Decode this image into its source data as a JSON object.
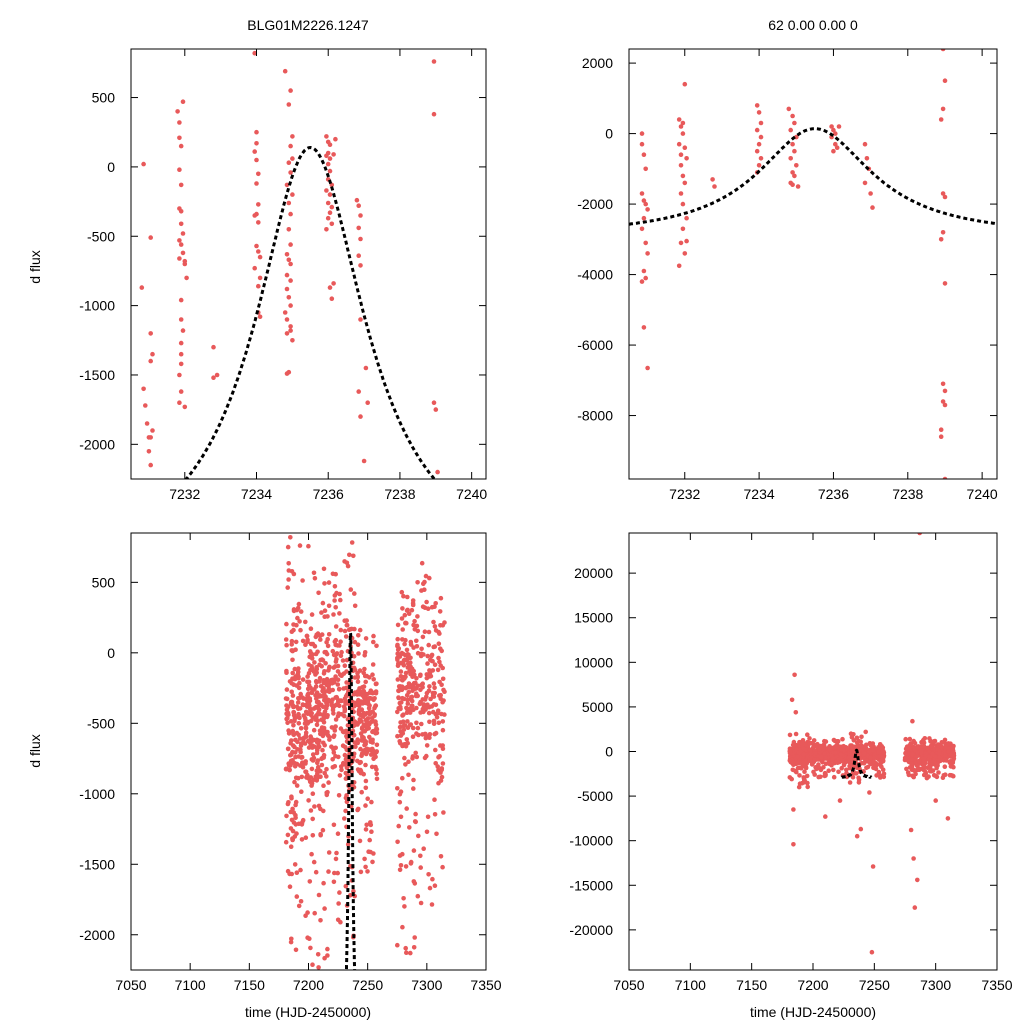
{
  "colors": {
    "points": "#e8595a",
    "model": "#000000"
  },
  "figure": {
    "title_left": "BLG01M2226.1247",
    "title_right": "62  0.00  0.00  0",
    "ylabel": "d flux",
    "xlabel": "time (HJD-2450000)"
  },
  "chart_data": [
    {
      "id": "top-left",
      "type": "scatter",
      "xlim": [
        7230.5,
        7240.4
      ],
      "ylim": [
        -2250,
        850
      ],
      "xticks": [
        7232,
        7234,
        7236,
        7238,
        7240
      ],
      "yticks": [
        -2000,
        -1500,
        -1000,
        -500,
        0,
        500
      ],
      "model": {
        "t0": 7235.5,
        "peak": 140,
        "base": -2950,
        "tE": 2.05
      },
      "points": [
        [
          7230.85,
          20
        ],
        [
          7230.8,
          -870
        ],
        [
          7230.85,
          -1600
        ],
        [
          7230.9,
          -1720
        ],
        [
          7230.95,
          -1850
        ],
        [
          7231,
          -1950
        ],
        [
          7231.0,
          -2050
        ],
        [
          7231.05,
          -2150
        ],
        [
          7231.05,
          -1950
        ],
        [
          7231.1,
          -1900
        ],
        [
          7231.05,
          -1200
        ],
        [
          7231.1,
          -1350
        ],
        [
          7231.05,
          -1400
        ],
        [
          7231.05,
          -510
        ],
        [
          7231.8,
          400
        ],
        [
          7231.85,
          320
        ],
        [
          7231.85,
          210
        ],
        [
          7231.9,
          150
        ],
        [
          7231.95,
          470
        ],
        [
          7231.85,
          -20
        ],
        [
          7231.9,
          -130
        ],
        [
          7231.85,
          -300
        ],
        [
          7231.9,
          -320
        ],
        [
          7231.9,
          -410
        ],
        [
          7231.85,
          -530
        ],
        [
          7231.9,
          -560
        ],
        [
          7231.95,
          -620
        ],
        [
          7232.0,
          -680
        ],
        [
          7232.05,
          -800
        ],
        [
          7231.85,
          -660
        ],
        [
          7231.9,
          -960
        ],
        [
          7231.9,
          -1100
        ],
        [
          7231.95,
          -1180
        ],
        [
          7231.9,
          -1270
        ],
        [
          7231.9,
          -1350
        ],
        [
          7231.9,
          -1420
        ],
        [
          7231.85,
          -1500
        ],
        [
          7231.9,
          -1620
        ],
        [
          7231.85,
          -1700
        ],
        [
          7232.0,
          -1730
        ],
        [
          7231.95,
          -480
        ],
        [
          7232.0,
          -700
        ],
        [
          7232.8,
          -1300
        ],
        [
          7232.8,
          -1520
        ],
        [
          7232.9,
          -1500
        ],
        [
          7233.95,
          820
        ],
        [
          7234.0,
          250
        ],
        [
          7234.0,
          170
        ],
        [
          7233.95,
          110
        ],
        [
          7234.0,
          50
        ],
        [
          7234.05,
          -50
        ],
        [
          7234.0,
          -120
        ],
        [
          7234.05,
          -270
        ],
        [
          7234.0,
          -340
        ],
        [
          7233.95,
          -350
        ],
        [
          7234.05,
          -400
        ],
        [
          7234.0,
          -570
        ],
        [
          7234.05,
          -610
        ],
        [
          7234.1,
          -650
        ],
        [
          7233.95,
          -730
        ],
        [
          7234.1,
          -800
        ],
        [
          7234.05,
          -860
        ],
        [
          7234.05,
          -1050
        ],
        [
          7234.1,
          -1080
        ],
        [
          7234.8,
          690
        ],
        [
          7234.95,
          550
        ],
        [
          7234.9,
          450
        ],
        [
          7235.0,
          220
        ],
        [
          7234.95,
          150
        ],
        [
          7235.0,
          60
        ],
        [
          7234.9,
          30
        ],
        [
          7234.95,
          -40
        ],
        [
          7234.85,
          -130
        ],
        [
          7235.0,
          -200
        ],
        [
          7234.9,
          -260
        ],
        [
          7234.95,
          -340
        ],
        [
          7234.9,
          -450
        ],
        [
          7234.95,
          -560
        ],
        [
          7234.85,
          -630
        ],
        [
          7234.9,
          -670
        ],
        [
          7234.95,
          -700
        ],
        [
          7234.85,
          -780
        ],
        [
          7234.95,
          -820
        ],
        [
          7234.85,
          -880
        ],
        [
          7234.9,
          -940
        ],
        [
          7234.95,
          -1000
        ],
        [
          7234.85,
          -1100
        ],
        [
          7234.95,
          -1150
        ],
        [
          7234.85,
          -1200
        ],
        [
          7234.95,
          -1180
        ],
        [
          7234.85,
          -1490
        ],
        [
          7234.9,
          -1480
        ],
        [
          7235.0,
          -1250
        ],
        [
          7234.8,
          -1050
        ],
        [
          7235.95,
          220
        ],
        [
          7236.0,
          180
        ],
        [
          7236.05,
          160
        ],
        [
          7236.0,
          100
        ],
        [
          7235.95,
          80
        ],
        [
          7236.05,
          60
        ],
        [
          7236.0,
          20
        ],
        [
          7236.05,
          -30
        ],
        [
          7236.0,
          -90
        ],
        [
          7236.1,
          -130
        ],
        [
          7235.95,
          -170
        ],
        [
          7236.05,
          -200
        ],
        [
          7236.0,
          -260
        ],
        [
          7236.1,
          -290
        ],
        [
          7236.05,
          -330
        ],
        [
          7236.0,
          -370
        ],
        [
          7236.1,
          -410
        ],
        [
          7235.95,
          -450
        ],
        [
          7236.05,
          -870
        ],
        [
          7236.1,
          -950
        ],
        [
          7236.15,
          -840
        ],
        [
          7236.15,
          90
        ],
        [
          7236.2,
          200
        ],
        [
          7236.8,
          -240
        ],
        [
          7236.85,
          -280
        ],
        [
          7236.9,
          -350
        ],
        [
          7236.85,
          -440
        ],
        [
          7236.9,
          -520
        ],
        [
          7236.85,
          -640
        ],
        [
          7236.9,
          -710
        ],
        [
          7236.9,
          -1100
        ],
        [
          7236.85,
          -1620
        ],
        [
          7236.9,
          -1800
        ],
        [
          7237.05,
          -1450
        ],
        [
          7237.1,
          -1700
        ],
        [
          7237.0,
          -2120
        ],
        [
          7238.95,
          760
        ],
        [
          7238.95,
          380
        ],
        [
          7238.95,
          -1700
        ],
        [
          7239.0,
          -1750
        ],
        [
          7239.05,
          -2200
        ]
      ]
    },
    {
      "id": "top-right",
      "type": "scatter",
      "xlim": [
        7230.5,
        7240.4
      ],
      "ylim": [
        -9800,
        2400
      ],
      "xticks": [
        7232,
        7234,
        7236,
        7238,
        7240
      ],
      "yticks": [
        -8000,
        -6000,
        -4000,
        -2000,
        0,
        2000
      ],
      "model": {
        "t0": 7235.5,
        "peak": 140,
        "base": -2950,
        "tE": 2.05
      },
      "points": [
        [
          7230.85,
          0
        ],
        [
          7230.85,
          -300
        ],
        [
          7230.9,
          -600
        ],
        [
          7230.95,
          -1000
        ],
        [
          7230.85,
          -1700
        ],
        [
          7230.9,
          -1900
        ],
        [
          7230.95,
          -2000
        ],
        [
          7231.0,
          -2150
        ],
        [
          7230.9,
          -2400
        ],
        [
          7230.85,
          -2700
        ],
        [
          7230.95,
          -3100
        ],
        [
          7231.0,
          -3400
        ],
        [
          7230.9,
          -3900
        ],
        [
          7230.95,
          -4100
        ],
        [
          7230.85,
          -4200
        ],
        [
          7230.9,
          -5500
        ],
        [
          7231.0,
          -6650
        ],
        [
          7231.85,
          400
        ],
        [
          7231.95,
          300
        ],
        [
          7232.0,
          1400
        ],
        [
          7231.9,
          200
        ],
        [
          7231.95,
          0
        ],
        [
          7231.85,
          -300
        ],
        [
          7232.0,
          -400
        ],
        [
          7231.9,
          -600
        ],
        [
          7232.05,
          -700
        ],
        [
          7231.9,
          -900
        ],
        [
          7231.95,
          -1200
        ],
        [
          7232.0,
          -1400
        ],
        [
          7231.9,
          -1700
        ],
        [
          7231.95,
          -2000
        ],
        [
          7232.05,
          -2400
        ],
        [
          7231.95,
          -2700
        ],
        [
          7231.9,
          -3100
        ],
        [
          7232.05,
          -3050
        ],
        [
          7231.85,
          -3750
        ],
        [
          7232.0,
          -3400
        ],
        [
          7232.75,
          -1300
        ],
        [
          7232.8,
          -1500
        ],
        [
          7233.95,
          800
        ],
        [
          7234.0,
          600
        ],
        [
          7234.05,
          300
        ],
        [
          7233.95,
          100
        ],
        [
          7234.05,
          -100
        ],
        [
          7234.0,
          -300
        ],
        [
          7233.95,
          -500
        ],
        [
          7234.05,
          -700
        ],
        [
          7234.0,
          -900
        ],
        [
          7233.95,
          -1100
        ],
        [
          7234.8,
          700
        ],
        [
          7234.9,
          500
        ],
        [
          7234.95,
          300
        ],
        [
          7234.85,
          100
        ],
        [
          7235.0,
          -100
        ],
        [
          7234.9,
          -300
        ],
        [
          7234.95,
          -500
        ],
        [
          7234.85,
          -700
        ],
        [
          7235.0,
          -900
        ],
        [
          7234.9,
          -1100
        ],
        [
          7234.95,
          -1200
        ],
        [
          7234.85,
          -1400
        ],
        [
          7235.05,
          -1500
        ],
        [
          7234.9,
          -1450
        ],
        [
          7235.95,
          200
        ],
        [
          7236.0,
          100
        ],
        [
          7236.05,
          0
        ],
        [
          7235.95,
          -100
        ],
        [
          7236.05,
          -300
        ],
        [
          7236.0,
          -500
        ],
        [
          7236.1,
          -400
        ],
        [
          7236.15,
          200
        ],
        [
          7236.85,
          -300
        ],
        [
          7236.9,
          -700
        ],
        [
          7236.95,
          -1000
        ],
        [
          7236.85,
          -1400
        ],
        [
          7237.0,
          -1700
        ],
        [
          7237.05,
          -2100
        ],
        [
          7238.95,
          2400
        ],
        [
          7239.0,
          1500
        ],
        [
          7238.95,
          700
        ],
        [
          7238.9,
          400
        ],
        [
          7238.95,
          -1700
        ],
        [
          7239.0,
          -1800
        ],
        [
          7238.95,
          -2800
        ],
        [
          7238.9,
          -3000
        ],
        [
          7239.0,
          -4250
        ],
        [
          7238.95,
          -7100
        ],
        [
          7239.0,
          -7300
        ],
        [
          7238.95,
          -7600
        ],
        [
          7239.0,
          -7700
        ],
        [
          7238.9,
          -8400
        ],
        [
          7238.9,
          -8600
        ],
        [
          7239.0,
          -9800
        ]
      ]
    },
    {
      "id": "bottom-left",
      "type": "scatter",
      "xlim": [
        7050,
        7350
      ],
      "ylim": [
        -2250,
        850
      ],
      "xticks": [
        7050,
        7100,
        7150,
        7200,
        7250,
        7300,
        7350
      ],
      "yticks": [
        -2000,
        -1500,
        -1000,
        -500,
        0,
        500
      ],
      "model": {
        "t0": 7235.5,
        "peak": 140,
        "base": -2950,
        "tE": 2.05
      },
      "clusters": [
        {
          "x0": 7181,
          "x1": 7196,
          "ymin": -2250,
          "ymax": 850,
          "center": -450,
          "n": 200
        },
        {
          "x0": 7197,
          "x1": 7218,
          "ymin": -2250,
          "ymax": 800,
          "center": -420,
          "n": 300
        },
        {
          "x0": 7219,
          "x1": 7228,
          "ymin": -2000,
          "ymax": 700,
          "center": -300,
          "n": 100
        },
        {
          "x0": 7229,
          "x1": 7240,
          "ymin": -2100,
          "ymax": 800,
          "center": -500,
          "n": 160
        },
        {
          "x0": 7241,
          "x1": 7258,
          "ymin": -1600,
          "ymax": 200,
          "center": -450,
          "n": 200
        },
        {
          "x0": 7275,
          "x1": 7293,
          "ymin": -2150,
          "ymax": 500,
          "center": -250,
          "n": 220
        },
        {
          "x0": 7294,
          "x1": 7315,
          "ymin": -1800,
          "ymax": 700,
          "center": -250,
          "n": 160
        }
      ]
    },
    {
      "id": "bottom-right",
      "type": "scatter",
      "xlim": [
        7050,
        7350
      ],
      "ylim": [
        -24500,
        24500
      ],
      "xticks": [
        7050,
        7100,
        7150,
        7200,
        7250,
        7300,
        7350
      ],
      "yticks": [
        -20000,
        -15000,
        -10000,
        -5000,
        0,
        5000,
        10000,
        15000,
        20000
      ],
      "model": {
        "t0": 7235.5,
        "peak": 140,
        "base": -2950,
        "tE": 2.05
      },
      "clusters": [
        {
          "x0": 7181,
          "x1": 7196,
          "ymin": -4000,
          "ymax": 2000,
          "center": -400,
          "n": 200
        },
        {
          "x0": 7197,
          "x1": 7228,
          "ymin": -3000,
          "ymax": 1500,
          "center": -300,
          "n": 280
        },
        {
          "x0": 7229,
          "x1": 7240,
          "ymin": -3500,
          "ymax": 2000,
          "center": -400,
          "n": 140
        },
        {
          "x0": 7241,
          "x1": 7258,
          "ymin": -3000,
          "ymax": 1000,
          "center": -400,
          "n": 160
        },
        {
          "x0": 7275,
          "x1": 7315,
          "ymin": -3000,
          "ymax": 1500,
          "center": -200,
          "n": 400
        }
      ],
      "points": [
        [
          7185,
          8600
        ],
        [
          7183,
          5800
        ],
        [
          7186,
          4400
        ],
        [
          7184,
          -10400
        ],
        [
          7184,
          -6500
        ],
        [
          7210,
          -7300
        ],
        [
          7222,
          -5500
        ],
        [
          7239,
          -8700
        ],
        [
          7236,
          -9500
        ],
        [
          7246,
          -4600
        ],
        [
          7248,
          -22500
        ],
        [
          7249,
          -12900
        ],
        [
          7283,
          -17500
        ],
        [
          7285,
          -14400
        ],
        [
          7282,
          -12000
        ],
        [
          7280,
          -8800
        ],
        [
          7281,
          3400
        ],
        [
          7287,
          24500
        ],
        [
          7300,
          -5500
        ],
        [
          7310,
          -7500
        ],
        [
          7231,
          2000
        ],
        [
          7243,
          2200
        ]
      ]
    }
  ]
}
